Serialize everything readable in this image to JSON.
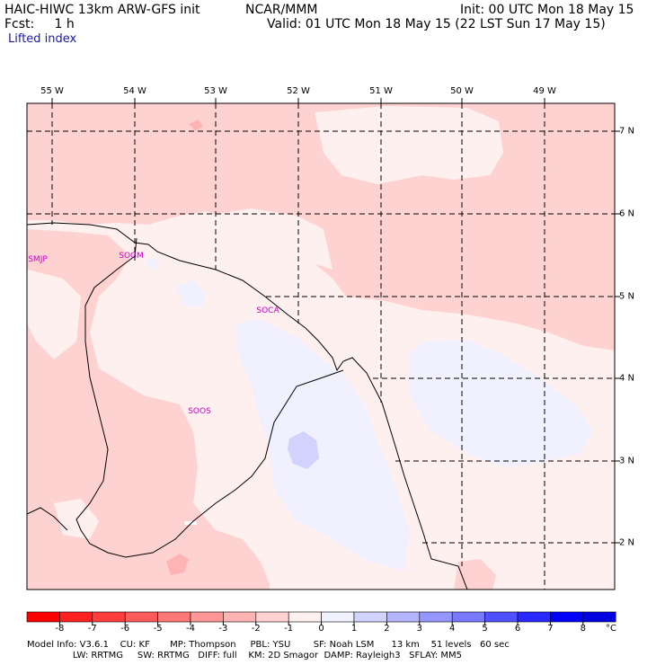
{
  "header": {
    "model": "HAIC-HIWC 13km ARW-GFS init",
    "agency": "NCAR/MMM",
    "init": "Init: 00 UTC Mon 18 May 15",
    "fcst": "Fcst:     1 h",
    "valid": "Valid: 01 UTC Mon 18 May 15 (22 LST Sun 17 May 15)",
    "field": "Lifted index"
  },
  "lon_labels": [
    "55 W",
    "54 W",
    "53 W",
    "52 W",
    "51 W",
    "50 W",
    "49 W"
  ],
  "lat_labels": [
    "7 N",
    "6 N",
    "5 N",
    "4 N",
    "3 N",
    "2 N"
  ],
  "stations": [
    "SMJP",
    "SOGM",
    "SOCA",
    "SOOS"
  ],
  "colorbar": {
    "labels": [
      "-8",
      "-7",
      "-6",
      "-5",
      "-4",
      "-3",
      "-2",
      "-1",
      "0",
      "1",
      "2",
      "3",
      "4",
      "5",
      "6",
      "7",
      "8"
    ],
    "unit": "°C",
    "colors": [
      "#ff0000",
      "#ff2020",
      "#ff3d3d",
      "#ff5a5a",
      "#ff7878",
      "#ff9696",
      "#ffb4b4",
      "#ffd2d2",
      "#fff0f0",
      "#f0f0ff",
      "#d2d2ff",
      "#b4b4ff",
      "#9696ff",
      "#7878ff",
      "#5050ff",
      "#2828ff",
      "#0000ff",
      "#0000e0"
    ]
  },
  "footer": {
    "line1": "Model Info: V3.6.1    CU: KF       MP: Thompson     PBL: YSU        SF: Noah LSM      13 km    51 levels   60 sec",
    "line2": "                LW: RRTMG     SW: RRTMG   DIFF: full    KM: 2D Smagor  DAMP: Rayleigh3   SFLAY: MM5"
  },
  "legend_colors": {
    "li_neg2_to_neg1": "#ffd2d2",
    "li_neg1_to_0": "#fff0f0",
    "li_0_to_1": "#f0f0ff",
    "li_1_to_2": "#d2d2ff",
    "li_neg3_to_neg2": "#ffb4b4"
  }
}
